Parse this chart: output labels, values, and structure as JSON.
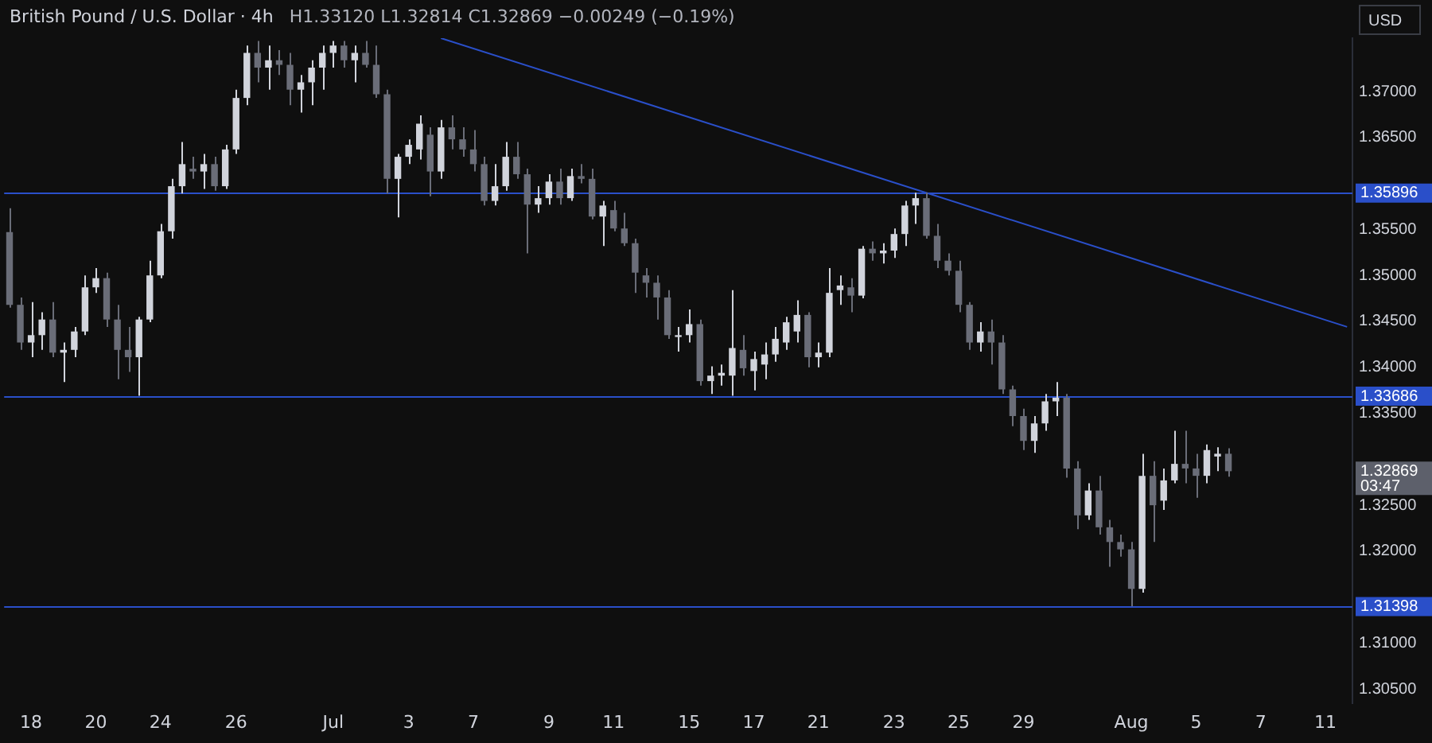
{
  "chart_data": {
    "type": "candlestick",
    "title": "British Pound / U.S. Dollar · 4h",
    "subtitle": "H1.33120 L1.32814 C1.32869 −0.00249 (−0.19%)",
    "annotations": [
      "1.32869",
      "03:47",
      "USD"
    ],
    "categories": [
      null,
      null,
      "18",
      null,
      null,
      null,
      null,
      null,
      "20",
      null,
      null,
      null,
      null,
      null,
      "24",
      null,
      null,
      null,
      null,
      null,
      null,
      "26",
      null,
      null,
      null,
      null,
      null,
      null,
      null,
      null,
      "Jul",
      null,
      null,
      null,
      null,
      null,
      null,
      "3",
      null,
      null,
      null,
      null,
      null,
      "7",
      null,
      null,
      null,
      null,
      null,
      null,
      "9",
      null,
      null,
      null,
      null,
      null,
      "11",
      null,
      null,
      null,
      null,
      null,
      null,
      "15",
      null,
      null,
      null,
      null,
      null,
      "17",
      null,
      null,
      null,
      null,
      null,
      "21",
      null,
      null,
      null,
      null,
      null,
      null,
      "23",
      null,
      null,
      null,
      null,
      null,
      "25",
      null,
      null,
      null,
      null,
      null,
      "29",
      null,
      null,
      null,
      null,
      null,
      null,
      null,
      null,
      null,
      "Aug",
      null,
      null,
      null,
      null,
      null,
      "5",
      null,
      null,
      null,
      null,
      null,
      "7",
      null,
      null,
      null,
      null,
      null,
      "11",
      null,
      null
    ],
    "ohlc": [
      [
        1.3547,
        1.3573,
        1.3465,
        1.3468
      ],
      [
        1.3468,
        1.3476,
        1.3419,
        1.3427
      ],
      [
        1.3427,
        1.3471,
        1.3411,
        1.3435
      ],
      [
        1.3435,
        1.346,
        1.3419,
        1.3452
      ],
      [
        1.3452,
        1.3471,
        1.3411,
        1.3416
      ],
      [
        1.3416,
        1.3427,
        1.3384,
        1.3419
      ],
      [
        1.3419,
        1.3444,
        1.3411,
        1.3439
      ],
      [
        1.3439,
        1.35,
        1.3435,
        1.3487
      ],
      [
        1.3487,
        1.3508,
        1.3481,
        1.3497
      ],
      [
        1.3497,
        1.3503,
        1.3444,
        1.3452
      ],
      [
        1.3452,
        1.3468,
        1.3387,
        1.3419
      ],
      [
        1.3419,
        1.3444,
        1.3395,
        1.3411
      ],
      [
        1.3411,
        1.3455,
        1.3369,
        1.3452
      ],
      [
        1.3452,
        1.3516,
        1.3449,
        1.35
      ],
      [
        1.35,
        1.3556,
        1.3497,
        1.3548
      ],
      [
        1.3548,
        1.3605,
        1.354,
        1.3597
      ],
      [
        1.3597,
        1.3645,
        1.3589,
        1.3621
      ],
      [
        1.3616,
        1.3629,
        1.3605,
        1.3613
      ],
      [
        1.3613,
        1.3632,
        1.3594,
        1.3621
      ],
      [
        1.3621,
        1.3629,
        1.3592,
        1.3597
      ],
      [
        1.3597,
        1.3642,
        1.3594,
        1.3637
      ],
      [
        1.3637,
        1.3702,
        1.3632,
        1.3693
      ],
      [
        1.3693,
        1.375,
        1.3685,
        1.3742
      ],
      [
        1.3742,
        1.3755,
        1.371,
        1.3726
      ],
      [
        1.3726,
        1.375,
        1.3702,
        1.3734
      ],
      [
        1.3734,
        1.3745,
        1.3718,
        1.3729
      ],
      [
        1.3729,
        1.3742,
        1.3685,
        1.3702
      ],
      [
        1.3702,
        1.3718,
        1.3677,
        1.371
      ],
      [
        1.371,
        1.3734,
        1.3685,
        1.3726
      ],
      [
        1.3726,
        1.375,
        1.3702,
        1.3742
      ],
      [
        1.3742,
        1.3755,
        1.3726,
        1.375
      ],
      [
        1.375,
        1.3755,
        1.3726,
        1.3734
      ],
      [
        1.3734,
        1.375,
        1.371,
        1.3742
      ],
      [
        1.3742,
        1.3755,
        1.3726,
        1.3729
      ],
      [
        1.3729,
        1.375,
        1.3693,
        1.3697
      ],
      [
        1.3697,
        1.3702,
        1.3589,
        1.3605
      ],
      [
        1.3605,
        1.3632,
        1.3563,
        1.3629
      ],
      [
        1.3629,
        1.3648,
        1.3621,
        1.3642
      ],
      [
        1.3637,
        1.3674,
        1.3626,
        1.3665
      ],
      [
        1.3653,
        1.3661,
        1.3586,
        1.3613
      ],
      [
        1.3613,
        1.3669,
        1.3605,
        1.3661
      ],
      [
        1.3661,
        1.3674,
        1.3637,
        1.3648
      ],
      [
        1.3648,
        1.3661,
        1.3629,
        1.3637
      ],
      [
        1.3637,
        1.3658,
        1.3613,
        1.3621
      ],
      [
        1.3621,
        1.3629,
        1.3576,
        1.3581
      ],
      [
        1.3581,
        1.3621,
        1.3576,
        1.3597
      ],
      [
        1.3597,
        1.3645,
        1.3592,
        1.3629
      ],
      [
        1.3629,
        1.3645,
        1.3605,
        1.361
      ],
      [
        1.361,
        1.3616,
        1.3524,
        1.3577
      ],
      [
        1.3577,
        1.3597,
        1.3568,
        1.3584
      ],
      [
        1.3584,
        1.361,
        1.3577,
        1.3602
      ],
      [
        1.3602,
        1.3616,
        1.3577,
        1.3584
      ],
      [
        1.3584,
        1.3616,
        1.3581,
        1.3608
      ],
      [
        1.3608,
        1.3621,
        1.36,
        1.3605
      ],
      [
        1.3605,
        1.3616,
        1.3561,
        1.3564
      ],
      [
        1.3564,
        1.3581,
        1.3532,
        1.3576
      ],
      [
        1.3571,
        1.3581,
        1.3548,
        1.3551
      ],
      [
        1.3551,
        1.3568,
        1.3532,
        1.3535
      ],
      [
        1.3535,
        1.354,
        1.3481,
        1.3503
      ],
      [
        1.35,
        1.3508,
        1.3476,
        1.3492
      ],
      [
        1.3492,
        1.35,
        1.3452,
        1.3476
      ],
      [
        1.3476,
        1.3484,
        1.3431,
        1.3435
      ],
      [
        1.3433,
        1.3444,
        1.3417,
        1.3435
      ],
      [
        1.3435,
        1.3463,
        1.3427,
        1.3447
      ],
      [
        1.3447,
        1.3452,
        1.338,
        1.3385
      ],
      [
        1.3385,
        1.3401,
        1.3371,
        1.3391
      ],
      [
        1.3391,
        1.3403,
        1.338,
        1.3394
      ],
      [
        1.3391,
        1.3484,
        1.3369,
        1.3421
      ],
      [
        1.3419,
        1.3435,
        1.3391,
        1.3399
      ],
      [
        1.3396,
        1.3417,
        1.3375,
        1.3409
      ],
      [
        1.3403,
        1.3427,
        1.3387,
        1.3414
      ],
      [
        1.3414,
        1.3444,
        1.3406,
        1.3431
      ],
      [
        1.3427,
        1.3455,
        1.3419,
        1.3449
      ],
      [
        1.3439,
        1.3473,
        1.3427,
        1.3457
      ],
      [
        1.3457,
        1.346,
        1.34,
        1.3411
      ],
      [
        1.3411,
        1.3427,
        1.34,
        1.3416
      ],
      [
        1.3416,
        1.3508,
        1.3411,
        1.3481
      ],
      [
        1.3484,
        1.35,
        1.3468,
        1.3489
      ],
      [
        1.3487,
        1.3497,
        1.346,
        1.3478
      ],
      [
        1.3478,
        1.3532,
        1.3475,
        1.3529
      ],
      [
        1.3529,
        1.3537,
        1.3516,
        1.3524
      ],
      [
        1.3524,
        1.3535,
        1.3513,
        1.3527
      ],
      [
        1.3527,
        1.3551,
        1.3519,
        1.3545
      ],
      [
        1.3545,
        1.3581,
        1.3532,
        1.3576
      ],
      [
        1.3576,
        1.359,
        1.3556,
        1.3584
      ],
      [
        1.3584,
        1.359,
        1.354,
        1.3543
      ],
      [
        1.3543,
        1.3556,
        1.3508,
        1.3516
      ],
      [
        1.3516,
        1.3524,
        1.35,
        1.3505
      ],
      [
        1.3505,
        1.3516,
        1.346,
        1.3468
      ],
      [
        1.3468,
        1.3471,
        1.3419,
        1.3427
      ],
      [
        1.3427,
        1.3449,
        1.3417,
        1.3439
      ],
      [
        1.3439,
        1.3452,
        1.3403,
        1.3427
      ],
      [
        1.3427,
        1.3435,
        1.3371,
        1.3376
      ],
      [
        1.3376,
        1.338,
        1.3336,
        1.3347
      ],
      [
        1.3347,
        1.3355,
        1.331,
        1.332
      ],
      [
        1.332,
        1.3347,
        1.3307,
        1.3339
      ],
      [
        1.3339,
        1.3371,
        1.3331,
        1.3363
      ],
      [
        1.3363,
        1.3384,
        1.3347,
        1.3367
      ],
      [
        1.3367,
        1.3371,
        1.328,
        1.329
      ],
      [
        1.329,
        1.3298,
        1.3224,
        1.3239
      ],
      [
        1.3239,
        1.3274,
        1.3234,
        1.3266
      ],
      [
        1.3266,
        1.3282,
        1.3218,
        1.3226
      ],
      [
        1.3226,
        1.3234,
        1.3183,
        1.321
      ],
      [
        1.321,
        1.3218,
        1.3194,
        1.3202
      ],
      [
        1.3202,
        1.321,
        1.314,
        1.3159
      ],
      [
        1.3159,
        1.3306,
        1.3155,
        1.3282
      ],
      [
        1.3282,
        1.3298,
        1.321,
        1.325
      ],
      [
        1.3255,
        1.329,
        1.3245,
        1.3277
      ],
      [
        1.3277,
        1.3331,
        1.3274,
        1.3295
      ],
      [
        1.3295,
        1.3331,
        1.3274,
        1.329
      ],
      [
        1.329,
        1.3306,
        1.3258,
        1.3282
      ],
      [
        1.3282,
        1.3316,
        1.3274,
        1.331
      ],
      [
        1.3303,
        1.3313,
        1.3287,
        1.3306
      ],
      [
        1.3306,
        1.3312,
        1.3281,
        1.3287
      ],
      null,
      null,
      null,
      null,
      null,
      null,
      null,
      null,
      null,
      null,
      null
    ],
    "colors": [
      "#6a6d78",
      "#6a6d78",
      "#d1d4dc",
      "#d1d4dc",
      "#6a6d78",
      "#d1d4dc",
      "#d1d4dc",
      "#d1d4dc",
      "#d1d4dc",
      "#6a6d78",
      "#6a6d78",
      "#6a6d78",
      "#d1d4dc",
      "#d1d4dc",
      "#d1d4dc",
      "#d1d4dc",
      "#d1d4dc",
      "#6a6d78",
      "#d1d4dc",
      "#6a6d78",
      "#d1d4dc",
      "#d1d4dc",
      "#d1d4dc",
      "#6a6d78",
      "#d1d4dc",
      "#6a6d78",
      "#6a6d78",
      "#d1d4dc",
      "#d1d4dc",
      "#d1d4dc",
      "#d1d4dc",
      "#6a6d78",
      "#d1d4dc",
      "#6a6d78",
      "#6a6d78",
      "#6a6d78",
      "#d1d4dc",
      "#d1d4dc",
      "#d1d4dc",
      "#6a6d78",
      "#d1d4dc",
      "#6a6d78",
      "#6a6d78",
      "#6a6d78",
      "#6a6d78",
      "#d1d4dc",
      "#d1d4dc",
      "#6a6d78",
      "#6a6d78",
      "#d1d4dc",
      "#d1d4dc",
      "#6a6d78",
      "#d1d4dc",
      "#6a6d78",
      "#6a6d78",
      "#d1d4dc",
      "#6a6d78",
      "#6a6d78",
      "#6a6d78",
      "#6a6d78",
      "#6a6d78",
      "#6a6d78",
      "#d1d4dc",
      "#d1d4dc",
      "#6a6d78",
      "#d1d4dc",
      "#d1d4dc",
      "#d1d4dc",
      "#6a6d78",
      "#d1d4dc",
      "#d1d4dc",
      "#d1d4dc",
      "#d1d4dc",
      "#d1d4dc",
      "#6a6d78",
      "#d1d4dc",
      "#d1d4dc",
      "#d1d4dc",
      "#6a6d78",
      "#d1d4dc",
      "#6a6d78",
      "#d1d4dc",
      "#d1d4dc",
      "#d1d4dc",
      "#d1d4dc",
      "#6a6d78",
      "#6a6d78",
      "#6a6d78",
      "#6a6d78",
      "#6a6d78",
      "#d1d4dc",
      "#6a6d78",
      "#6a6d78",
      "#6a6d78",
      "#6a6d78",
      "#d1d4dc",
      "#d1d4dc",
      "#d1d4dc",
      "#6a6d78",
      "#6a6d78",
      "#d1d4dc",
      "#6a6d78",
      "#6a6d78",
      "#6a6d78",
      "#6a6d78",
      "#d1d4dc",
      "#6a6d78",
      "#d1d4dc",
      "#d1d4dc",
      "#6a6d78",
      "#6a6d78",
      "#d1d4dc",
      "#d1d4dc",
      "#6a6d78",
      null,
      null,
      null,
      null,
      null,
      null,
      null,
      null,
      null,
      null,
      null
    ],
    "series": [
      {
        "type": "line",
        "color": "#2a4fc9",
        "values": [
          null,
          null,
          null,
          null,
          null,
          null,
          null,
          null,
          null,
          null,
          null,
          null,
          null,
          null,
          null,
          null,
          null,
          null,
          null,
          null,
          null,
          null,
          null,
          null,
          null,
          null,
          null,
          null,
          null,
          null,
          null,
          null,
          null,
          null,
          null,
          null,
          null,
          null,
          null,
          null,
          1.3758,
          null,
          null,
          null,
          null,
          null,
          null,
          null,
          null,
          null,
          null,
          null,
          null,
          null,
          null,
          null,
          null,
          null,
          null,
          null,
          null,
          null,
          null,
          null,
          null,
          null,
          null,
          null,
          null,
          null,
          null,
          null,
          null,
          null,
          null,
          null,
          null,
          null,
          null,
          null,
          null,
          null,
          null,
          null,
          null,
          null,
          null,
          null,
          null,
          null,
          null,
          null,
          null,
          null,
          null,
          null,
          null,
          null,
          null,
          null,
          null,
          null,
          null,
          null,
          null,
          null,
          null,
          null,
          null,
          null,
          null,
          null,
          null,
          null,
          null,
          null,
          null,
          null,
          null,
          null,
          null,
          null,
          null,
          null,
          1.3444
        ]
      }
    ],
    "ylim": [
      1.3035,
      1.3758
    ],
    "yticks": [
      {
        "value": 1.305,
        "label": "1.30500"
      },
      {
        "value": 1.31,
        "label": "1.31000"
      },
      {
        "value": 1.32,
        "label": "1.32000"
      },
      {
        "value": 1.325,
        "label": "1.32500"
      },
      {
        "value": 1.335,
        "label": "1.33500"
      },
      {
        "value": 1.34,
        "label": "1.34000"
      },
      {
        "value": 1.345,
        "label": "1.34500"
      },
      {
        "value": 1.35,
        "label": "1.35000"
      },
      {
        "value": 1.355,
        "label": "1.35500"
      },
      {
        "value": 1.365,
        "label": "1.36500"
      },
      {
        "value": 1.37,
        "label": "1.37000"
      }
    ],
    "ref_lines": [
      {
        "axis": "y",
        "value": 1.35896,
        "label": "1.35896",
        "color": "#2a4fc9"
      },
      {
        "axis": "y",
        "value": 1.33686,
        "label": "1.33686",
        "color": "#2a4fc9"
      },
      {
        "axis": "y",
        "value": 1.31398,
        "label": "1.31398",
        "color": "#2a4fc9"
      }
    ]
  }
}
